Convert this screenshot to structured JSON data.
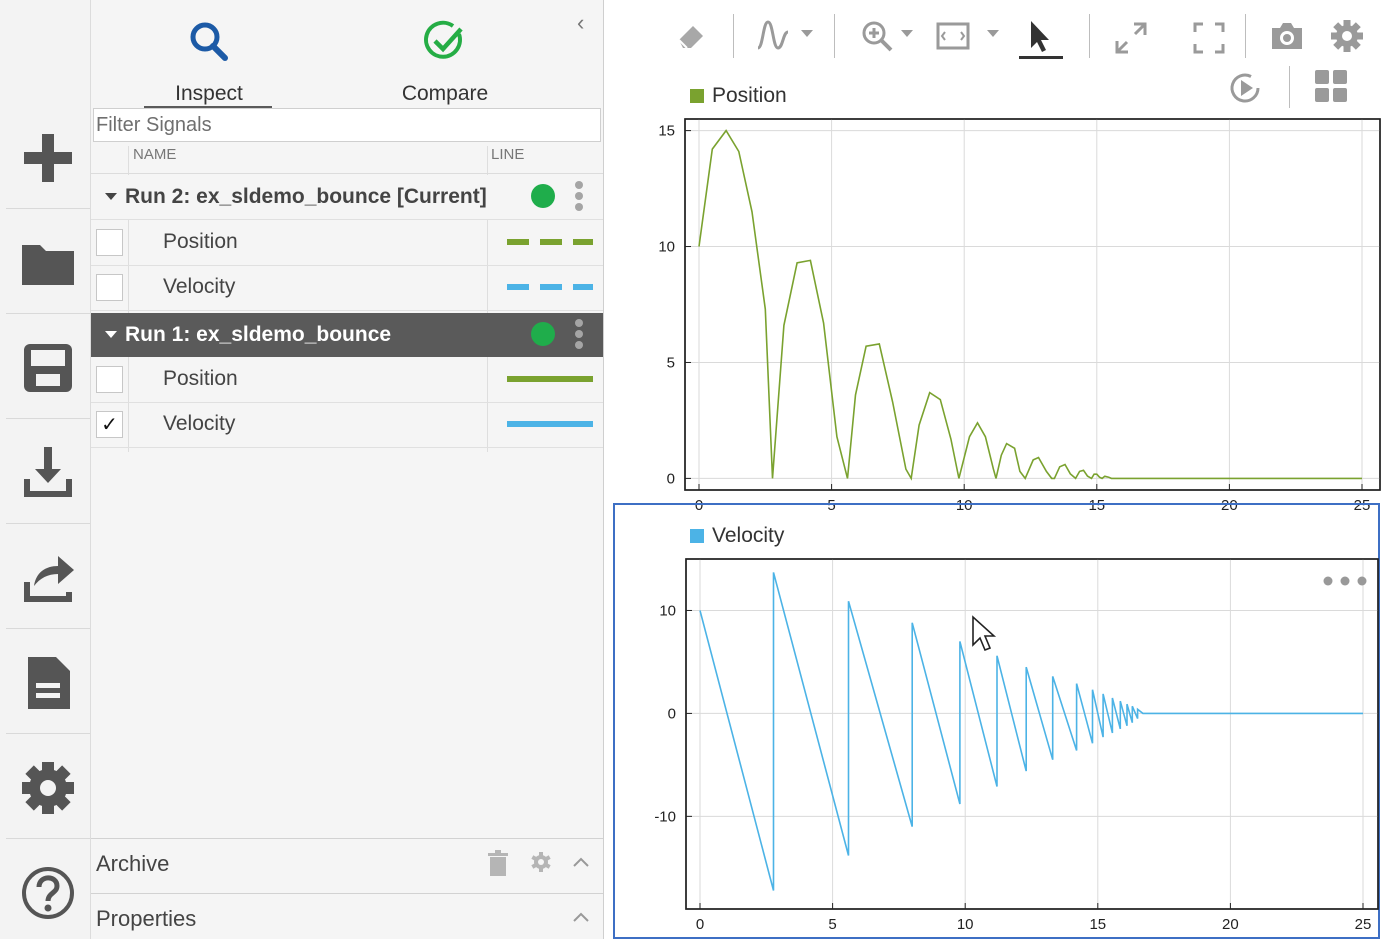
{
  "left_rail": {
    "icons": [
      "add-icon",
      "folder-icon",
      "save-icon",
      "download-icon",
      "share-icon",
      "document-icon",
      "gear-icon",
      "help-icon"
    ]
  },
  "tabs": {
    "inspect": "Inspect",
    "compare": "Compare"
  },
  "filter": {
    "placeholder": "Filter Signals"
  },
  "columns": {
    "name": "NAME",
    "line": "LINE"
  },
  "runs": [
    {
      "label": "Run 2: ex_sldemo_bounce [Current]",
      "selected": false,
      "signals": [
        {
          "name": "Position",
          "checked": false,
          "color": "#7aa22f",
          "style": "dashed"
        },
        {
          "name": "Velocity",
          "checked": false,
          "color": "#4cb3e6",
          "style": "dashed"
        }
      ]
    },
    {
      "label": "Run 1: ex_sldemo_bounce",
      "selected": true,
      "signals": [
        {
          "name": "Position",
          "checked": false,
          "color": "#7aa22f",
          "style": "solid"
        },
        {
          "name": "Velocity",
          "checked": true,
          "check_mark": "✓",
          "color": "#4cb3e6",
          "style": "solid"
        }
      ]
    }
  ],
  "sections": {
    "archive": "Archive",
    "properties": "Properties"
  },
  "colors": {
    "run_dot": "#1fad4b",
    "selected_run_bg": "#5a5a5a",
    "active_plot_border": "#3d6fc4",
    "position": "#7aa22f",
    "velocity": "#4cb3e6"
  },
  "chart_data": [
    {
      "type": "line",
      "legend": "Position",
      "color": "#7aa22f",
      "xlim": [
        0,
        25
      ],
      "ylim": [
        -0.5,
        15.5
      ],
      "xticks": [
        "0",
        "5",
        "10",
        "15",
        "20",
        "25"
      ],
      "yticks": [
        "0",
        "5",
        "10",
        "15"
      ],
      "grid": true,
      "series": [
        {
          "name": "Position",
          "x": [
            0,
            0.5,
            1.02,
            1.5,
            2.0,
            2.5,
            2.77,
            3.2,
            3.7,
            4.2,
            4.7,
            5.2,
            5.6,
            5.9,
            6.3,
            6.8,
            7.3,
            7.8,
            8.0,
            8.3,
            8.7,
            9.1,
            9.5,
            9.8,
            10.2,
            10.5,
            10.8,
            11.1,
            11.2,
            11.4,
            11.6,
            11.9,
            12.1,
            12.3,
            12.6,
            12.8,
            13.1,
            13.3,
            13.4,
            13.6,
            13.8,
            14.0,
            14.2,
            14.35,
            14.5,
            14.65,
            14.8,
            14.9,
            15.0,
            15.1,
            15.2,
            15.3,
            15.45,
            15.55,
            15.7,
            16.0,
            25.0
          ],
          "y": [
            10,
            14.2,
            15.0,
            14.1,
            11.5,
            7.3,
            0,
            6.6,
            9.3,
            9.4,
            6.7,
            1.8,
            0,
            3.6,
            5.7,
            5.8,
            3.3,
            0.4,
            0,
            2.3,
            3.7,
            3.4,
            1.7,
            0,
            1.8,
            2.4,
            1.8,
            0.4,
            0,
            1.0,
            1.5,
            1.3,
            0.3,
            0,
            0.8,
            0.9,
            0.3,
            0,
            0,
            0.5,
            0.6,
            0.2,
            0,
            0.3,
            0.35,
            0.1,
            0,
            0.18,
            0.18,
            0.05,
            0,
            0.09,
            0.05,
            0,
            0,
            0,
            0
          ]
        }
      ]
    },
    {
      "type": "line",
      "legend": "Velocity",
      "color": "#4cb3e6",
      "xlim": [
        0,
        25
      ],
      "ylim": [
        -19,
        15
      ],
      "xticks": [
        "0",
        "5",
        "10",
        "15",
        "20",
        "25"
      ],
      "yticks": [
        "10",
        "0",
        "-10"
      ],
      "grid": true,
      "series": [
        {
          "name": "Velocity",
          "x": [
            0,
            2.77,
            2.77,
            5.6,
            5.6,
            8.0,
            8.0,
            9.8,
            9.8,
            11.2,
            11.2,
            12.3,
            12.3,
            13.3,
            13.3,
            14.2,
            14.2,
            14.8,
            14.8,
            15.2,
            15.2,
            15.55,
            15.55,
            15.85,
            15.85,
            16.1,
            16.1,
            16.3,
            16.3,
            16.5,
            16.5,
            16.7,
            25.0
          ],
          "y": [
            10,
            -17.2,
            13.7,
            -13.8,
            10.9,
            -11.0,
            8.8,
            -8.8,
            7.0,
            -7.1,
            5.6,
            -5.6,
            4.5,
            -4.5,
            3.6,
            -3.6,
            2.9,
            -2.9,
            2.3,
            -2.3,
            1.9,
            -1.9,
            1.5,
            -1.5,
            1.2,
            -1.2,
            0.9,
            -0.9,
            0.7,
            -0.5,
            0.4,
            0,
            0
          ]
        }
      ]
    }
  ]
}
